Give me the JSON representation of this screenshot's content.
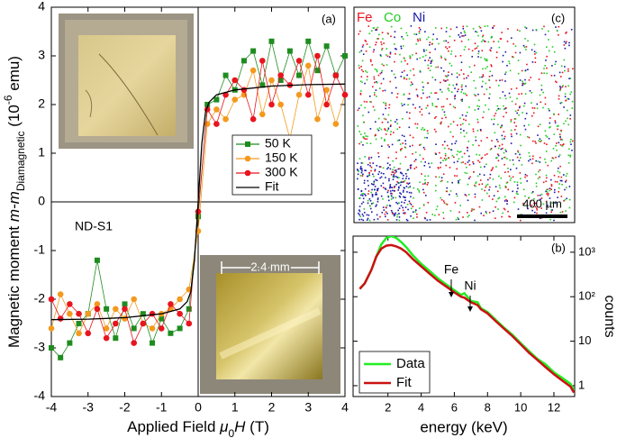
{
  "chart_data": [
    {
      "type": "line",
      "panel_label": "(a)",
      "annotation": "ND-S1",
      "x_label": [
        "Applied Field ",
        "μ",
        "0",
        "H",
        " (T)"
      ],
      "y_label": [
        "Magnetic moment ",
        "m-m",
        "Diamagnetic",
        " (10",
        "-6",
        " emu)"
      ],
      "xlim": [
        -4,
        4
      ],
      "ylim": [
        -4,
        4
      ],
      "xticks": [
        -4,
        -3,
        -2,
        -1,
        0,
        1,
        2,
        3,
        4
      ],
      "yticks": [
        -4,
        -3,
        -2,
        -1,
        0,
        1,
        2,
        3,
        4
      ],
      "zero_lines": true,
      "legend": "center-right",
      "x": [
        -4,
        -3.75,
        -3.5,
        -3.25,
        -3,
        -2.75,
        -2.5,
        -2.25,
        -2,
        -1.75,
        -1.5,
        -1.25,
        -1,
        -0.75,
        -0.5,
        -0.25,
        0,
        0.25,
        0.5,
        0.75,
        1,
        1.25,
        1.5,
        1.75,
        2,
        2.25,
        2.5,
        2.75,
        3,
        3.25,
        3.5,
        3.75,
        4
      ],
      "series": [
        {
          "name": "50 K",
          "color": "#1f8c1f",
          "marker": "square",
          "values": [
            -3.0,
            -3.2,
            -2.9,
            -2.5,
            -2.3,
            -1.2,
            -2.2,
            -2.8,
            -2.1,
            -2.6,
            -2.3,
            -2.9,
            -2.4,
            -2.7,
            -2.6,
            -2.2,
            -0.3,
            2.0,
            2.1,
            2.6,
            2.3,
            2.9,
            3.1,
            2.4,
            3.3,
            2.5,
            3.1,
            2.6,
            3.3,
            2.7,
            3.2,
            2.6,
            3.0
          ]
        },
        {
          "name": "150 K",
          "color": "#f39a1e",
          "marker": "circle",
          "values": [
            -2.6,
            -1.9,
            -2.3,
            -2.7,
            -2.3,
            -2.1,
            -2.6,
            -2.2,
            -2.4,
            -2.0,
            -2.5,
            -2.6,
            -2.3,
            -2.2,
            -2.0,
            -1.8,
            -0.6,
            1.6,
            1.9,
            1.7,
            2.1,
            2.2,
            2.7,
            1.8,
            2.5,
            2.0,
            1.3,
            2.2,
            2.8,
            1.7,
            2.3,
            1.6,
            2.2
          ]
        },
        {
          "name": "300 K",
          "color": "#e8141e",
          "marker": "circle",
          "values": [
            -2.0,
            -2.4,
            -2.1,
            -2.3,
            -2.7,
            -2.2,
            -2.8,
            -2.5,
            -2.2,
            -2.9,
            -2.5,
            -2.3,
            -2.6,
            -2.1,
            -2.3,
            -2.5,
            -0.2,
            1.9,
            1.6,
            2.2,
            2.5,
            2.3,
            1.7,
            2.9,
            2.0,
            2.6,
            2.4,
            2.9,
            2.2,
            3.0,
            2.0,
            2.6,
            2.2
          ]
        },
        {
          "name": "Fit",
          "color": "#000000",
          "x": [
            -4,
            -3,
            -2,
            -1,
            -0.5,
            -0.3,
            -0.2,
            -0.1,
            0,
            0.1,
            0.2,
            0.3,
            0.5,
            1,
            2,
            3,
            4
          ],
          "values": [
            -2.42,
            -2.41,
            -2.38,
            -2.3,
            -2.2,
            -2.05,
            -1.85,
            -1.2,
            0,
            1.2,
            1.85,
            2.05,
            2.2,
            2.3,
            2.38,
            2.41,
            2.42
          ]
        }
      ]
    },
    {
      "type": "line",
      "panel_label": "(b)",
      "annotations": [
        "Fe",
        "Ni"
      ],
      "x_label": "energy (keV)",
      "y_label": "counts",
      "y_axis_side": "right",
      "log_y": true,
      "xlim": [
        -0.1,
        13.25
      ],
      "ylim": [
        0.57,
        2300
      ],
      "xticks": [
        2,
        4,
        6,
        8,
        10,
        12
      ],
      "yticks": [
        1,
        10,
        {
          "value": 100,
          "label": "10²"
        },
        {
          "value": 1000,
          "label": "10³"
        }
      ],
      "legend": "lower-left",
      "x": [
        0.3,
        0.6,
        1.0,
        1.3,
        1.6,
        1.9,
        2.2,
        2.5,
        2.8,
        3.1,
        3.5,
        4,
        4.5,
        5,
        5.5,
        6,
        6.4,
        6.6,
        7,
        7.4,
        7.6,
        8,
        8.5,
        9,
        9.5,
        10,
        10.5,
        11,
        11.5,
        12,
        12.5,
        13,
        13.2
      ],
      "series": [
        {
          "name": "Data",
          "color": "#22ee22",
          "width": 2.5,
          "values": [
            150,
            200,
            400,
            800,
            1500,
            2100,
            2300,
            2100,
            1700,
            1300,
            850,
            550,
            380,
            260,
            190,
            140,
            110,
            120,
            80,
            75,
            55,
            45,
            30,
            20,
            14,
            9,
            6,
            4,
            3,
            2,
            1.5,
            1.1,
            0.8
          ]
        },
        {
          "name": "Fit",
          "color": "#cc1111",
          "width": 2.5,
          "values": [
            150,
            200,
            400,
            800,
            1200,
            1400,
            1450,
            1350,
            1200,
            1000,
            700,
            480,
            330,
            230,
            170,
            125,
            100,
            95,
            75,
            65,
            52,
            42,
            28,
            19,
            13,
            8.5,
            5.5,
            3.8,
            2.6,
            1.8,
            1.3,
            0.95,
            0.7
          ]
        }
      ]
    }
  ],
  "map": {
    "panel_label": "(c)",
    "elements": [
      "Fe",
      "Co",
      "Ni"
    ],
    "scale_bar": "400 µm"
  },
  "insets": {
    "dimension": "2.4 mm"
  }
}
